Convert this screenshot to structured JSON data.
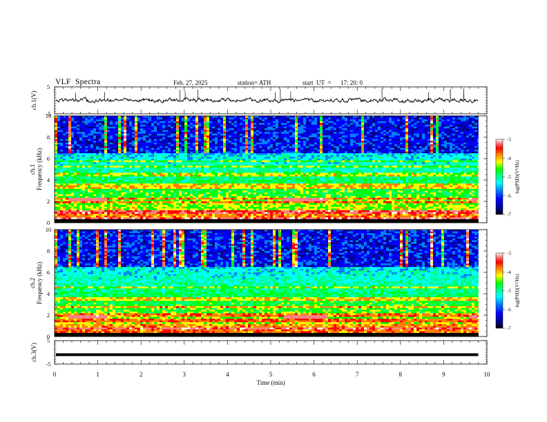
{
  "header": {
    "title": "VLF  Spectra",
    "date": "Feb. 27, 2025",
    "station": "station= ATH",
    "start_label": "start  UT  =",
    "start_time": "17: 20: 0"
  },
  "chart_data": [
    {
      "type": "line",
      "panel": "ch1-waveform",
      "ylabel": "ch.1(V)",
      "ylim": [
        -5,
        5
      ],
      "y_ticks": [
        "5",
        "-5"
      ],
      "x_range_min": [
        0,
        10
      ],
      "x_data_end_min": 9.8,
      "series": [
        {
          "values_approx": "noisy waveform around 0 V, amplitude about ±1 V, with spikes up to about +4 V"
        }
      ],
      "color": "#000000"
    },
    {
      "type": "heatmap",
      "panel": "ch1-spectrogram",
      "ylabel": "ch.1\nFrequency (kHz)",
      "ylim": [
        0,
        10
      ],
      "y_ticks": [
        "0",
        "2",
        "4",
        "6",
        "8",
        "10"
      ],
      "x_range_min": [
        0,
        10
      ],
      "x_data_end_min": 9.8,
      "colorbar": {
        "label": "log(PSD)(V²/Hz)",
        "range": [
          -7,
          -3
        ],
        "ticks": [
          "-3",
          "-4",
          "-5",
          "-6",
          "-7"
        ]
      },
      "features": {
        "black_band_khz": [
          0,
          0.3
        ],
        "dark_region_khz": [
          6.5,
          10
        ],
        "constant_lines_khz": [
          0.4,
          1.0,
          1.9,
          2.3,
          3.2,
          3.5,
          4.5,
          5.2,
          5.7
        ],
        "red_band_khz": 2.2,
        "red_band_intervals_min": [
          [
            0.3,
            1.2
          ],
          [
            5.3,
            6.3
          ],
          [
            9.6,
            9.8
          ]
        ]
      }
    },
    {
      "type": "heatmap",
      "panel": "ch2-spectrogram",
      "ylabel": "ch.2\nFrequency (kHz)",
      "ylim": [
        0,
        10
      ],
      "y_ticks": [
        "0",
        "2",
        "4",
        "6",
        "8",
        "10"
      ],
      "x_range_min": [
        0,
        10
      ],
      "x_data_end_min": 9.8,
      "colorbar": {
        "label": "log(PSD)(V²/Hz)",
        "range": [
          -7,
          -3
        ],
        "ticks": [
          "-3",
          "-4",
          "-5",
          "-6",
          "-7"
        ]
      },
      "features": {
        "black_band_khz": [
          0,
          0.3
        ],
        "dark_region_khz": [
          6.5,
          10
        ],
        "constant_lines_khz": [
          0.8,
          1.5,
          2.0,
          2.8,
          3.5,
          4.6
        ],
        "red_band_khz": 1.9,
        "red_band_intervals_min": [
          [
            0.3,
            1.2
          ],
          [
            5.3,
            6.3
          ],
          [
            9.6,
            9.8
          ]
        ]
      }
    },
    {
      "type": "line",
      "panel": "ch3-waveform",
      "ylabel": "ch.3(V)",
      "ylim": [
        -5,
        5
      ],
      "y_ticks": [
        "5",
        "-5"
      ],
      "x_range_min": [
        0,
        10
      ],
      "x_data_end_min": 9.8,
      "series": [
        {
          "values_approx": "near-constant about -1 V, thick trace"
        }
      ],
      "color": "#000000"
    }
  ],
  "x_axis": {
    "label": "Time  (min)",
    "ticks": [
      "0",
      "1",
      "2",
      "3",
      "4",
      "5",
      "6",
      "7",
      "8",
      "9",
      "10"
    ]
  },
  "colors": {
    "colormap": [
      "#000000",
      "#00008c",
      "#0000ff",
      "#0080ff",
      "#00ffff",
      "#00ff80",
      "#00ff00",
      "#ffff00",
      "#ff8000",
      "#ff0000",
      "#ff8080",
      "#ffffff"
    ]
  }
}
